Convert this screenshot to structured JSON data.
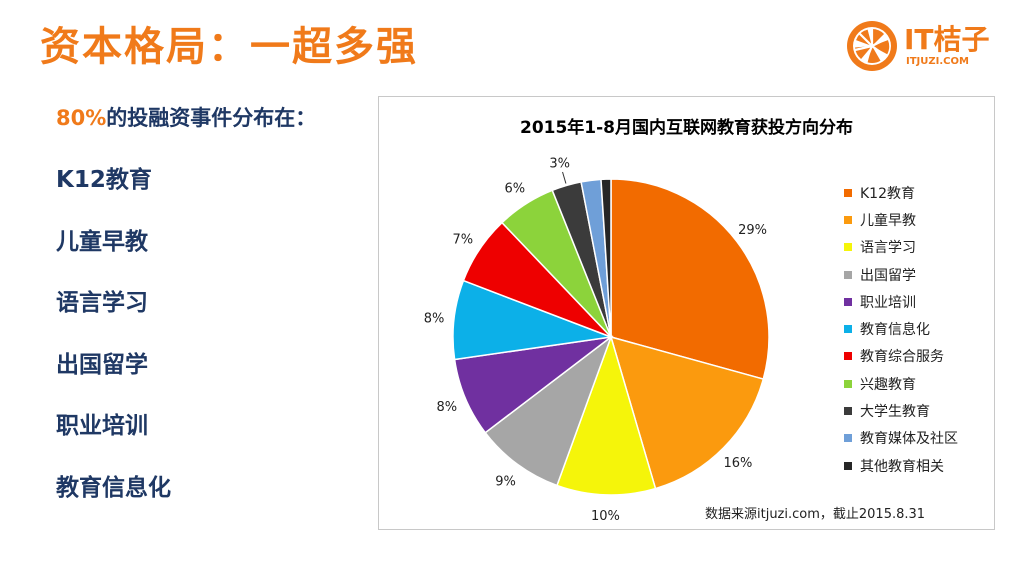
{
  "slide": {
    "title": "资本格局：一超多强",
    "intro_highlight": "80%",
    "intro_rest": "的投融资事件分布在：",
    "sectors": [
      "K12教育",
      "儿童早教",
      "语言学习",
      "出国留学",
      "职业培训",
      "教育信息化"
    ]
  },
  "logo": {
    "name": "IT桔子",
    "url": "ITJUZI.COM",
    "color": "#f07a1a"
  },
  "chart_data": {
    "type": "pie",
    "title": "2015年1-8月国内互联网教育获投方向分布",
    "source": "数据来源itjuzi.com，截止2015.8.31",
    "legend_position": "right",
    "slices": [
      {
        "name": "K12教育",
        "value": 29,
        "label": "29%",
        "color": "#f26b00"
      },
      {
        "name": "儿童早教",
        "value": 16,
        "label": "16%",
        "color": "#fb9a0e"
      },
      {
        "name": "语言学习",
        "value": 10,
        "label": "10%",
        "color": "#f5f50a"
      },
      {
        "name": "出国留学",
        "value": 9,
        "label": "9%",
        "color": "#a6a6a6"
      },
      {
        "name": "职业培训",
        "value": 8,
        "label": "8%",
        "color": "#7030a0"
      },
      {
        "name": "教育信息化",
        "value": 8,
        "label": "8%",
        "color": "#0cb0e8"
      },
      {
        "name": "教育综合服务",
        "value": 7,
        "label": "7%",
        "color": "#ee0000"
      },
      {
        "name": "兴趣教育",
        "value": 6,
        "label": "6%",
        "color": "#8cd33b"
      },
      {
        "name": "大学生教育",
        "value": 3,
        "label": "3%",
        "color": "#3b3b3b"
      },
      {
        "name": "教育媒体及社区",
        "value": 2,
        "label": "",
        "color": "#6f9fd8"
      },
      {
        "name": "其他教育相关",
        "value": 1,
        "label": "",
        "color": "#262626"
      }
    ]
  }
}
